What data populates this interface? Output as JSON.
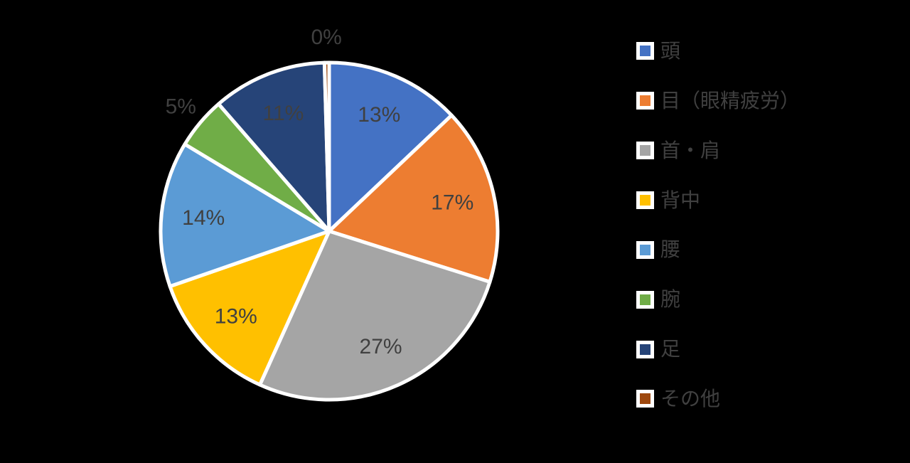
{
  "chart_data": {
    "type": "pie",
    "title": "",
    "legend_position": "right",
    "rotation_start": "12-oclock",
    "direction": "clockwise",
    "categories": [
      "頭",
      "目（眼精疲労）",
      "首・肩",
      "背中",
      "腰",
      "腕",
      "足",
      "その他"
    ],
    "values": [
      13,
      17,
      27,
      13,
      14,
      5,
      11,
      0
    ],
    "data_labels": [
      "13%",
      "17%",
      "27%",
      "13%",
      "14%",
      "5%",
      "11%",
      "0%"
    ],
    "colors": [
      "#4472C4",
      "#ED7D31",
      "#A5A5A5",
      "#FFC000",
      "#5B9BD5",
      "#70AD47",
      "#264478",
      "#9E480E"
    ],
    "slice_border_color": "#FFFFFF",
    "data_label_color": "#404040",
    "legend_text_color": "#404040",
    "background_color": "#000000"
  }
}
